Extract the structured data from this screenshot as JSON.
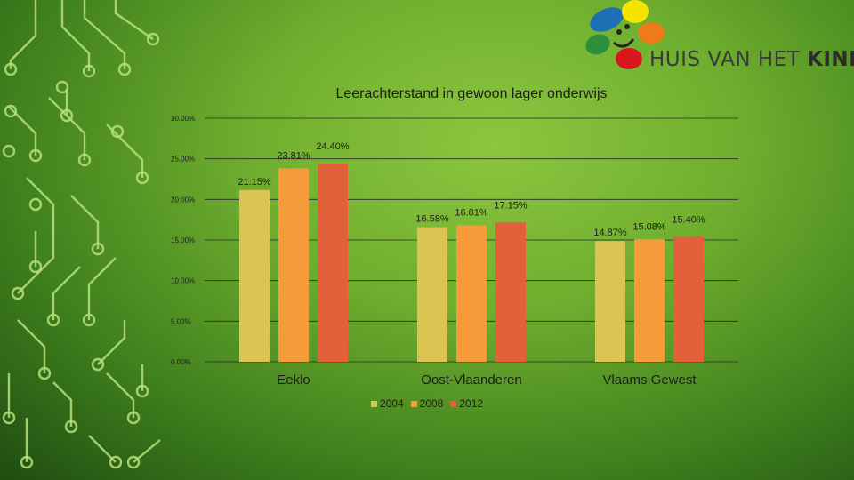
{
  "logo": {
    "text_regular": "HUIS VAN HET ",
    "text_bold": "KIND",
    "colors": [
      "#1f6fb5",
      "#f5e400",
      "#f07a1a",
      "#2e8f3a",
      "#d9161c"
    ]
  },
  "chart_data": {
    "type": "bar",
    "title": "Leerachterstand in gewoon lager onderwijs",
    "categories": [
      "Eeklo",
      "Oost-Vlaanderen",
      "Vlaams Gewest"
    ],
    "series": [
      {
        "name": "2004",
        "values": [
          21.15,
          16.58,
          14.87
        ],
        "labels": [
          "21.15%",
          "16.58%",
          "14.87%"
        ],
        "color": "#dcc452"
      },
      {
        "name": "2008",
        "values": [
          23.81,
          16.81,
          15.08
        ],
        "labels": [
          "23.81%",
          "16.81%",
          "15.08%"
        ],
        "color": "#f59b3a"
      },
      {
        "name": "2012",
        "values": [
          24.4,
          17.15,
          15.4
        ],
        "labels": [
          "24.40%",
          "17.15%",
          "15.40%"
        ],
        "color": "#e2603a"
      }
    ],
    "ylim": [
      0,
      30
    ],
    "yticks": [
      {
        "value": 0,
        "label": "0.00%"
      },
      {
        "value": 5,
        "label": "5.00%"
      },
      {
        "value": 10,
        "label": "10.00%"
      },
      {
        "value": 15,
        "label": "15.00%"
      },
      {
        "value": 20,
        "label": "20.00%"
      },
      {
        "value": 25,
        "label": "25.00%"
      },
      {
        "value": 30,
        "label": "30.00%"
      }
    ],
    "grid": true,
    "legend_position": "bottom"
  }
}
